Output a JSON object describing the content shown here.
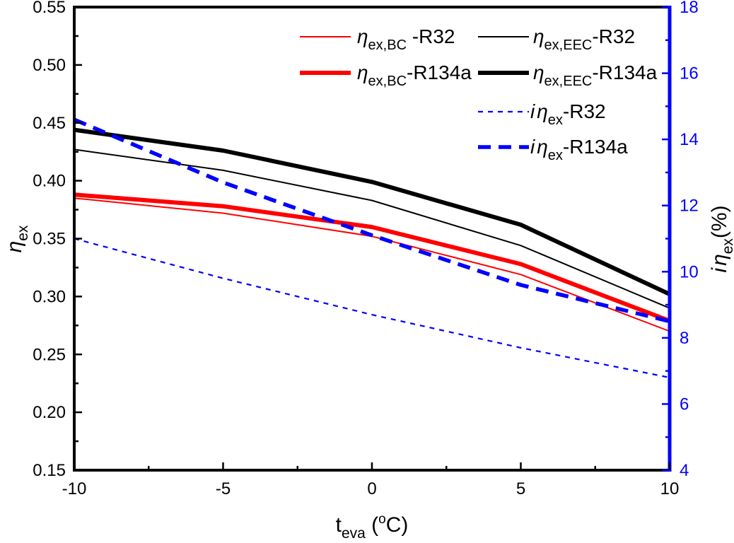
{
  "chart_data": {
    "type": "line",
    "x": [
      -10,
      -5,
      0,
      5,
      10
    ],
    "xlim": [
      -10,
      10
    ],
    "x_ticks": [
      "-10",
      "-5",
      "0",
      "5",
      "10"
    ],
    "xlabel": {
      "main": "t",
      "sub": "eva",
      "unit_open": " (",
      "degree": "o",
      "unit_close": "C)"
    },
    "ylim_left": [
      0.15,
      0.55
    ],
    "y_ticks_left": [
      "0.15",
      "0.20",
      "0.25",
      "0.30",
      "0.35",
      "0.40",
      "0.45",
      "0.50",
      "0.55"
    ],
    "ylabel_left": {
      "main": "η",
      "sub": "ex"
    },
    "ylim_right": [
      4,
      18
    ],
    "y_ticks_right": [
      "4",
      "6",
      "8",
      "10",
      "12",
      "14",
      "16",
      "18"
    ],
    "ylabel_right": {
      "prefix": "i",
      "main": "η",
      "sub": "ex",
      "suffix": "(%)"
    },
    "right_axis_color": "#0000ff",
    "grid": false,
    "legend_position": "top-right",
    "series": [
      {
        "name": "η_ex,BC -R32",
        "axis": "left",
        "color": "#ff0000",
        "style": "solid",
        "weight": "thin",
        "values": [
          0.385,
          0.372,
          0.352,
          0.319,
          0.27
        ],
        "label": {
          "main": "η",
          "sub": "ex,BC",
          "suffix": " -R32"
        }
      },
      {
        "name": "η_ex,EEC-R32",
        "axis": "left",
        "color": "#000000",
        "style": "solid",
        "weight": "thin",
        "values": [
          0.427,
          0.409,
          0.383,
          0.344,
          0.29
        ],
        "label": {
          "main": "η",
          "sub": "ex,EEC",
          "suffix": "-R32"
        }
      },
      {
        "name": "η_ex,BC-R134a",
        "axis": "left",
        "color": "#ff0000",
        "style": "solid",
        "weight": "thick",
        "values": [
          0.388,
          0.378,
          0.36,
          0.328,
          0.279
        ],
        "label": {
          "main": "η",
          "sub": "ex,BC",
          "suffix": "-R134a"
        }
      },
      {
        "name": "η_ex,EEC-R134a",
        "axis": "left",
        "color": "#000000",
        "style": "solid",
        "weight": "thick",
        "values": [
          0.444,
          0.426,
          0.399,
          0.362,
          0.302
        ],
        "label": {
          "main": "η",
          "sub": "ex,EEC",
          "suffix": "-R134a"
        }
      },
      {
        "name": "iη_ex-R32",
        "axis": "right",
        "color": "#0000ff",
        "style": "dashed",
        "weight": "thin",
        "values": [
          11.0,
          9.8,
          8.7,
          7.7,
          6.8
        ],
        "label": {
          "prefix": "i",
          "main": "η",
          "sub": "ex",
          "suffix": "-R32"
        }
      },
      {
        "name": "iη_ex-R134a",
        "axis": "right",
        "color": "#0000ff",
        "style": "dashed",
        "weight": "thick",
        "values": [
          14.6,
          12.7,
          11.1,
          9.6,
          8.5
        ],
        "label": {
          "prefix": "i",
          "main": "η",
          "sub": "ex",
          "suffix": "-R134a"
        }
      }
    ]
  }
}
